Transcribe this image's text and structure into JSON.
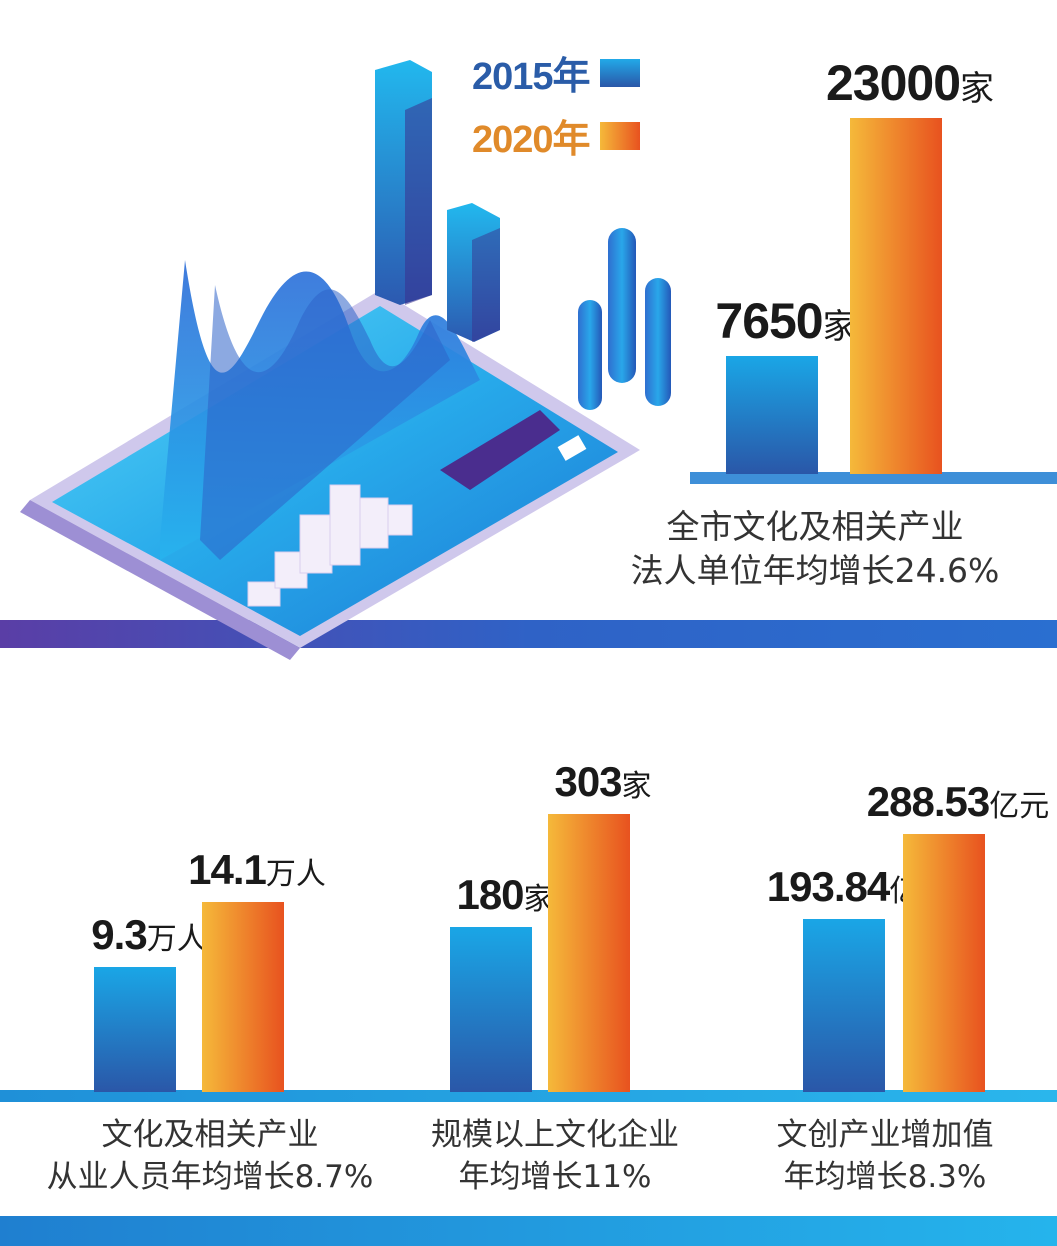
{
  "legend": [
    {
      "label": "2015年",
      "color": "#1f6fc7"
    },
    {
      "label": "2020年",
      "color": "#f0a030"
    }
  ],
  "colors": {
    "blue_top": "#1aa6e6",
    "blue_bottom": "#2a57a8",
    "orange_left": "#f5b93a",
    "orange_right": "#e8521f",
    "band": "#2a6fd0",
    "legend_2015_text": "#2a5ca8",
    "legend_2020_text": "#e08a2a"
  },
  "chart_data": [
    {
      "type": "bar",
      "categories": [
        "2015年",
        "2020年"
      ],
      "values": [
        7650,
        23000
      ],
      "value_labels": [
        {
          "number": "7650",
          "unit": "家"
        },
        {
          "number": "23000",
          "unit": "家"
        }
      ],
      "caption": [
        "全市文化及相关产业",
        "法人单位年均增长24.6%"
      ]
    },
    {
      "type": "bar",
      "categories": [
        "2015年",
        "2020年"
      ],
      "values": [
        9.3,
        14.1
      ],
      "value_labels": [
        {
          "number": "9.3",
          "unit": "万人"
        },
        {
          "number": "14.1",
          "unit": "万人"
        }
      ],
      "caption": [
        "文化及相关产业",
        "从业人员年均增长8.7%"
      ]
    },
    {
      "type": "bar",
      "categories": [
        "2015年",
        "2020年"
      ],
      "values": [
        180,
        303
      ],
      "value_labels": [
        {
          "number": "180",
          "unit": "家"
        },
        {
          "number": "303",
          "unit": "家"
        }
      ],
      "caption": [
        "规模以上文化企业",
        "年均增长11%"
      ]
    },
    {
      "type": "bar",
      "categories": [
        "2015年",
        "2020年"
      ],
      "values": [
        193.84,
        288.53
      ],
      "value_labels": [
        {
          "number": "193.84",
          "unit": "亿元"
        },
        {
          "number": "288.53",
          "unit": "亿元"
        }
      ],
      "caption": [
        "文创产业增加值",
        "年均增长8.3%"
      ]
    }
  ]
}
